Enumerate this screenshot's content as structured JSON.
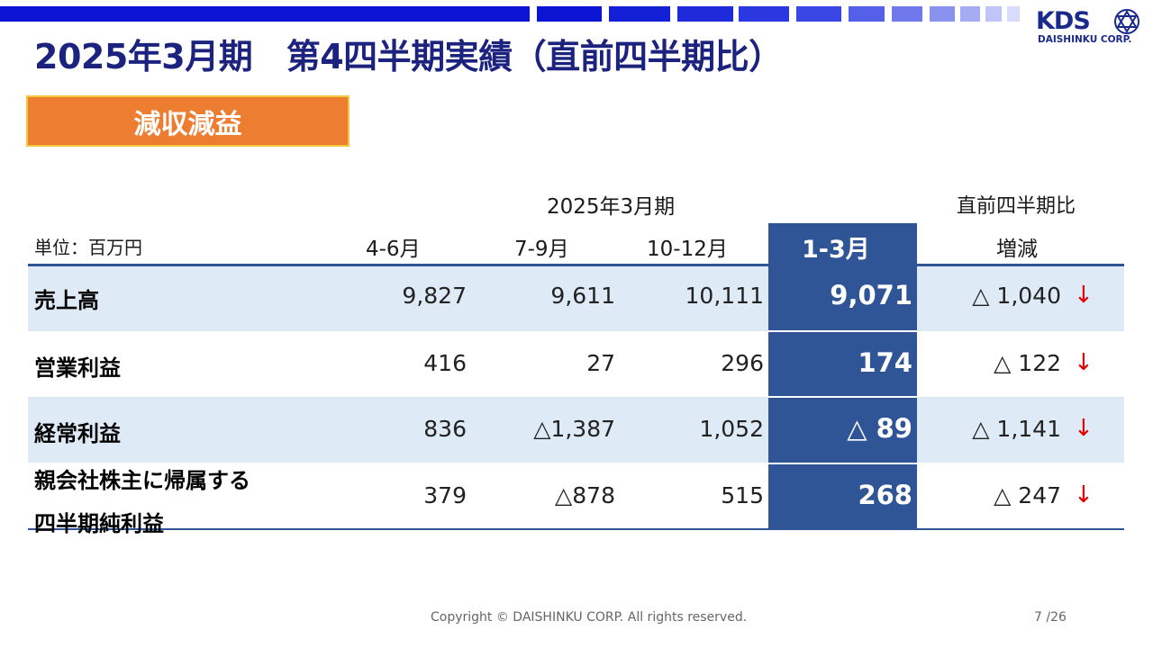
{
  "header": {
    "title": "2025年3月期　第4四半期実績（直前四半期比）",
    "badge": "減収減益"
  },
  "logo": {
    "text": "KDS",
    "company": "DAISHINKU CORP."
  },
  "table": {
    "period_header": "2025年3月期",
    "compare_header": "直前四半期比",
    "unit_label": "単位：百万円",
    "columns": [
      "4-6月",
      "7-9月",
      "10-12月",
      "1-3月"
    ],
    "change_label": "増減",
    "rows": [
      {
        "label": "売上高",
        "values": [
          "9,827",
          "9,611",
          "10,111",
          "9,071"
        ],
        "change": "△ 1,040",
        "arrow": "↓"
      },
      {
        "label": "営業利益",
        "values": [
          "416",
          "27",
          "296",
          "174"
        ],
        "change": "△ 122",
        "arrow": "↓"
      },
      {
        "label": "経常利益",
        "values": [
          "836",
          "△1,387",
          "1,052",
          "△ 89"
        ],
        "change": "△ 1,141",
        "arrow": "↓"
      },
      {
        "label_line1": "親会社株主に帰属する",
        "label_line2": "四半期純利益",
        "values": [
          "379",
          "△878",
          "515",
          "268"
        ],
        "change": "△ 247",
        "arrow": "↓"
      }
    ]
  },
  "footer": {
    "copyright": "Copyright © DAISHINKU CORP. All rights reserved.",
    "page": "7 /26"
  },
  "colors": {
    "title": "#1c237e",
    "badge_bg": "#ed7d31",
    "highlight_column": "#2f5597",
    "row_band": "#deebf7",
    "down_arrow": "#e00000"
  }
}
